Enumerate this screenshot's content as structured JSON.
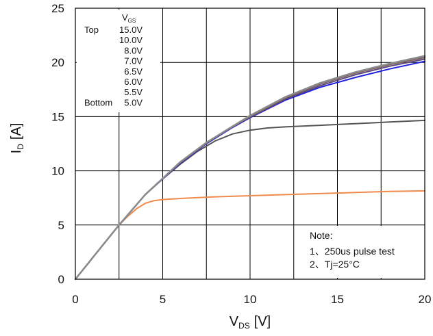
{
  "chart_data": {
    "type": "line",
    "title": "",
    "xlabel": {
      "main": "V",
      "sub": "DS",
      "unit": "[V]"
    },
    "ylabel": {
      "main": "I",
      "sub": "D",
      "unit": "[A]"
    },
    "xlim": [
      0,
      20
    ],
    "ylim": [
      0,
      25
    ],
    "xticks": [
      0,
      5,
      10,
      15,
      20
    ],
    "yticks": [
      0,
      5,
      10,
      15,
      20,
      25
    ],
    "grid": true,
    "legend": {
      "header_main": "V",
      "header_sub": "GS",
      "position": "top-left",
      "entries": [
        {
          "prefix": "Top",
          "label": "15.0V"
        },
        {
          "prefix": "",
          "label": "10.0V"
        },
        {
          "prefix": "",
          "label": "8.0V"
        },
        {
          "prefix": "",
          "label": "7.0V"
        },
        {
          "prefix": "",
          "label": "6.5V"
        },
        {
          "prefix": "",
          "label": "6.0V"
        },
        {
          "prefix": "",
          "label": "5.5V"
        },
        {
          "prefix": "Bottom",
          "label": "5.0V"
        }
      ]
    },
    "note": {
      "title": "Note:",
      "lines": [
        "1、250us pulse test",
        "2、Tj=25°C"
      ],
      "position": "bottom-right"
    },
    "series": [
      {
        "color": "#8b8b8b",
        "width": 2.4,
        "x": [
          0,
          1,
          2.5,
          4,
          5,
          6,
          7.5,
          9,
          10,
          12,
          14,
          16,
          18,
          20
        ],
        "y": [
          0,
          2.0,
          5.0,
          7.8,
          9.3,
          10.8,
          12.6,
          14.1,
          15.1,
          16.8,
          18.1,
          19.1,
          19.9,
          20.6
        ]
      },
      {
        "color": "#7a6a6a",
        "width": 2.4,
        "x": [
          0,
          1,
          2.5,
          4,
          5,
          6,
          7.5,
          9,
          10,
          12,
          14,
          16,
          18,
          20
        ],
        "y": [
          0,
          2.0,
          5.0,
          7.8,
          9.3,
          10.8,
          12.6,
          14.1,
          15.05,
          16.75,
          18.05,
          19.05,
          19.85,
          20.5
        ]
      },
      {
        "color": "#8a5a5a",
        "width": 2.0,
        "x": [
          0,
          1,
          2.5,
          4,
          5,
          6,
          7.5,
          9,
          10,
          12,
          14,
          16,
          18,
          20
        ],
        "y": [
          0,
          2.0,
          5.0,
          7.8,
          9.3,
          10.8,
          12.6,
          14.1,
          15.0,
          16.7,
          18.0,
          19.0,
          19.8,
          20.45
        ]
      },
      {
        "color": "#5a4a7a",
        "width": 2.0,
        "x": [
          0,
          1,
          2.5,
          4,
          5,
          6,
          7.5,
          9,
          10,
          12,
          14,
          16,
          18,
          20
        ],
        "y": [
          0,
          2.0,
          5.0,
          7.8,
          9.3,
          10.75,
          12.55,
          14.05,
          14.95,
          16.6,
          17.85,
          18.85,
          19.65,
          20.3
        ]
      },
      {
        "color": "#2222dd",
        "width": 2.0,
        "x": [
          0,
          1,
          2.5,
          4,
          5,
          6,
          7.5,
          9,
          10,
          12,
          14,
          16,
          18,
          20
        ],
        "y": [
          0,
          2.0,
          5.0,
          7.8,
          9.25,
          10.7,
          12.5,
          14.0,
          14.9,
          16.5,
          17.7,
          18.6,
          19.4,
          20.1
        ]
      },
      {
        "color": "#555555",
        "width": 2.0,
        "x": [
          0,
          1,
          2.5,
          4,
          5,
          6,
          7,
          8,
          9,
          10,
          11,
          12,
          14,
          16,
          18,
          20
        ],
        "y": [
          0,
          2.0,
          5.0,
          7.8,
          9.25,
          10.6,
          11.8,
          12.75,
          13.4,
          13.75,
          13.95,
          14.05,
          14.2,
          14.35,
          14.5,
          14.65
        ]
      },
      {
        "color": "#f08a4b",
        "width": 2.0,
        "x": [
          0,
          1,
          2,
          2.5,
          3,
          3.5,
          4,
          4.5,
          5,
          6,
          8,
          10,
          12,
          14,
          16,
          18,
          20
        ],
        "y": [
          0,
          2.0,
          4.0,
          5.0,
          5.8,
          6.5,
          7.0,
          7.25,
          7.35,
          7.45,
          7.6,
          7.7,
          7.8,
          7.9,
          8.0,
          8.1,
          8.15
        ]
      }
    ]
  }
}
